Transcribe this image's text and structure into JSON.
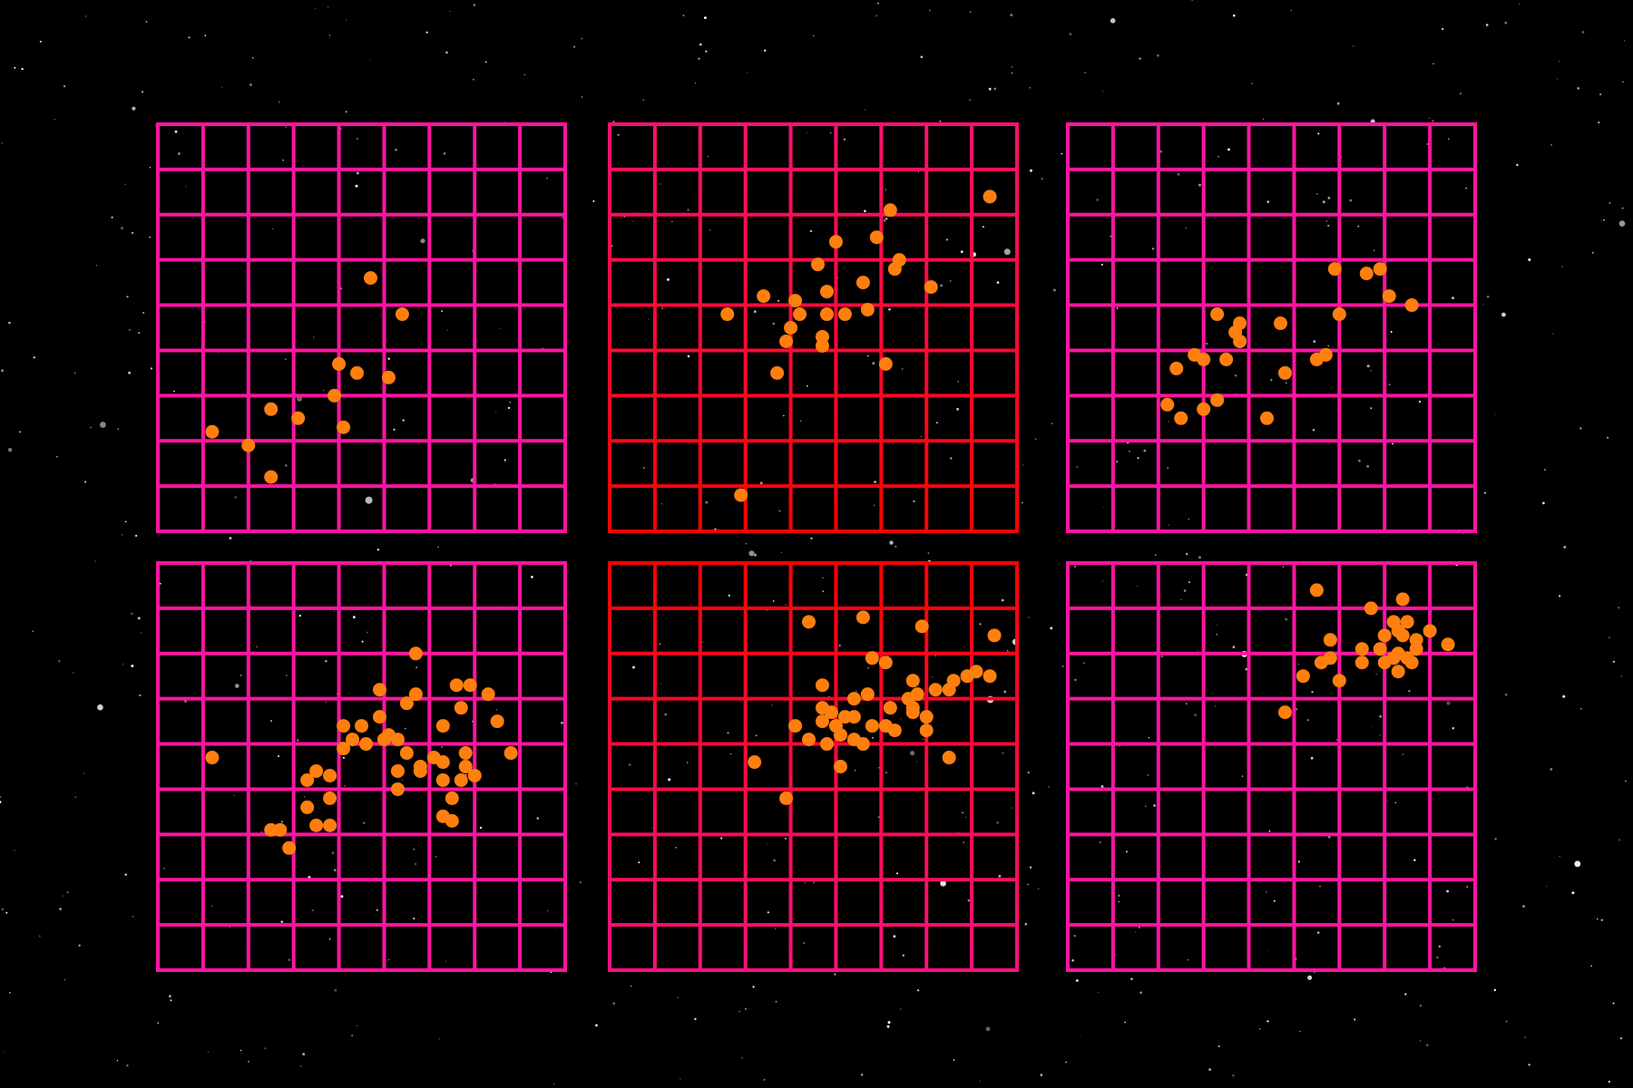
{
  "chart_data": [
    {
      "type": "scatter",
      "color": "#ff7f0e",
      "grid_color": [
        "#ff14a0",
        "#ff14a0"
      ],
      "xlim": [
        0,
        9
      ],
      "ylim": [
        0,
        9
      ],
      "xticks": [
        0,
        1,
        2,
        3,
        4,
        5,
        6,
        7,
        8,
        9
      ],
      "yticks": [
        0,
        1,
        2,
        3,
        4,
        5,
        6,
        7,
        8,
        9
      ],
      "grid": true,
      "x": [
        4.7,
        5.4,
        4.0,
        4.4,
        5.1,
        3.9,
        2.5,
        3.1,
        4.1,
        1.2,
        2.0,
        2.5
      ],
      "y": [
        5.6,
        4.8,
        3.7,
        3.5,
        3.4,
        3.0,
        2.7,
        2.5,
        2.3,
        2.2,
        1.9,
        1.2
      ]
    },
    {
      "type": "scatter",
      "color": "#ff7f0e",
      "grid_color": [
        "#ff1070",
        "#ff0000"
      ],
      "xlim": [
        0,
        9
      ],
      "ylim": [
        0,
        9
      ],
      "xticks": [
        0,
        1,
        2,
        3,
        4,
        5,
        6,
        7,
        8,
        9
      ],
      "yticks": [
        0,
        1,
        2,
        3,
        4,
        5,
        6,
        7,
        8,
        9
      ],
      "grid": true,
      "x": [
        8.4,
        6.2,
        5.0,
        5.9,
        6.4,
        6.3,
        4.6,
        7.1,
        5.6,
        3.4,
        4.1,
        4.8,
        4.2,
        2.6,
        4.8,
        5.2,
        5.7,
        4.0,
        3.9,
        4.7,
        4.7,
        6.1,
        3.7,
        2.9
      ],
      "y": [
        7.4,
        7.1,
        6.4,
        6.5,
        6.0,
        5.8,
        5.9,
        5.4,
        5.5,
        5.2,
        5.1,
        5.3,
        4.8,
        4.8,
        4.8,
        4.8,
        4.9,
        4.5,
        4.2,
        4.3,
        4.1,
        3.7,
        3.5,
        0.8
      ]
    },
    {
      "type": "scatter",
      "color": "#ff7f0e",
      "grid_color": [
        "#ff14a0",
        "#ff14a0"
      ],
      "xlim": [
        0,
        9
      ],
      "ylim": [
        0,
        9
      ],
      "xticks": [
        0,
        1,
        2,
        3,
        4,
        5,
        6,
        7,
        8,
        9
      ],
      "yticks": [
        0,
        1,
        2,
        3,
        4,
        5,
        6,
        7,
        8,
        9
      ],
      "grid": true,
      "x": [
        5.9,
        6.6,
        6.9,
        7.1,
        7.6,
        6.0,
        4.7,
        3.3,
        3.8,
        3.7,
        3.8,
        2.8,
        3.0,
        3.5,
        2.4,
        5.5,
        5.7,
        4.8,
        2.2,
        3.3,
        3.0,
        2.5,
        4.4
      ],
      "y": [
        5.8,
        5.7,
        5.8,
        5.2,
        5.0,
        4.8,
        4.6,
        4.8,
        4.6,
        4.4,
        4.2,
        3.9,
        3.8,
        3.8,
        3.6,
        3.8,
        3.9,
        3.5,
        2.8,
        2.9,
        2.7,
        2.5,
        2.5
      ]
    },
    {
      "type": "scatter",
      "color": "#ff7f0e",
      "grid_color": [
        "#ff14a0",
        "#ff14a0"
      ],
      "xlim": [
        0,
        9
      ],
      "ylim": [
        0,
        9
      ],
      "xticks": [
        0,
        1,
        2,
        3,
        4,
        5,
        6,
        7,
        8,
        9
      ],
      "yticks": [
        0,
        1,
        2,
        3,
        4,
        5,
        6,
        7,
        8,
        9
      ],
      "grid": true,
      "x": [
        5.7,
        6.6,
        6.9,
        7.3,
        4.9,
        5.7,
        5.5,
        6.7,
        7.5,
        4.9,
        4.1,
        4.5,
        6.3,
        4.3,
        5.1,
        5.3,
        4.6,
        4.1,
        5.0,
        1.2,
        5.5,
        6.1,
        6.8,
        7.8,
        5.8,
        6.3,
        6.8,
        5.3,
        5.8,
        7.0,
        3.3,
        3.5,
        3.8,
        6.3,
        6.7,
        5.3,
        3.8,
        6.5,
        3.3,
        6.3,
        6.5,
        3.5,
        3.8,
        2.5,
        2.7,
        2.9
      ],
      "y": [
        7.0,
        6.3,
        6.3,
        6.1,
        6.2,
        6.1,
        5.9,
        5.8,
        5.5,
        5.6,
        5.4,
        5.4,
        5.4,
        5.1,
        5.2,
        5.1,
        5.0,
        4.9,
        5.1,
        4.7,
        4.8,
        4.7,
        4.8,
        4.8,
        4.5,
        4.6,
        4.5,
        4.4,
        4.4,
        4.3,
        4.2,
        4.4,
        4.3,
        4.2,
        4.2,
        4.0,
        3.8,
        3.8,
        3.6,
        3.4,
        3.3,
        3.2,
        3.2,
        3.1,
        3.1,
        2.7
      ]
    },
    {
      "type": "scatter",
      "color": "#ff7f0e",
      "grid_color": [
        "#ff0000",
        "#ff1080"
      ],
      "xlim": [
        0,
        9
      ],
      "ylim": [
        0,
        9
      ],
      "xticks": [
        0,
        1,
        2,
        3,
        4,
        5,
        6,
        7,
        8,
        9
      ],
      "yticks": [
        0,
        1,
        2,
        3,
        4,
        5,
        6,
        7,
        8,
        9
      ],
      "grid": true,
      "x": [
        5.6,
        4.4,
        6.9,
        8.5,
        5.8,
        6.1,
        8.1,
        8.4,
        7.9,
        7.6,
        6.7,
        7.5,
        4.7,
        6.8,
        6.6,
        7.2,
        5.7,
        5.4,
        4.7,
        6.2,
        6.7,
        4.9,
        6.7,
        7.0,
        4.7,
        5.2,
        5.4,
        5.0,
        4.1,
        6.1,
        6.3,
        5.8,
        4.4,
        5.1,
        5.4,
        7.0,
        4.8,
        5.6,
        7.5,
        3.2,
        5.1,
        3.9
      ],
      "y": [
        7.8,
        7.7,
        7.6,
        7.4,
        6.9,
        6.8,
        6.6,
        6.5,
        6.5,
        6.4,
        6.4,
        6.2,
        6.3,
        6.1,
        6.0,
        6.2,
        6.1,
        6.0,
        5.8,
        5.8,
        5.8,
        5.7,
        5.7,
        5.6,
        5.5,
        5.6,
        5.6,
        5.4,
        5.4,
        5.4,
        5.3,
        5.4,
        5.1,
        5.2,
        5.1,
        5.3,
        5.0,
        5.0,
        4.7,
        4.6,
        4.5,
        3.8
      ]
    },
    {
      "type": "scatter",
      "color": "#ff7f0e",
      "grid_color": [
        "#ff14a0",
        "#ff14a0"
      ],
      "xlim": [
        0,
        9
      ],
      "ylim": [
        0,
        9
      ],
      "xticks": [
        0,
        1,
        2,
        3,
        4,
        5,
        6,
        7,
        8,
        9
      ],
      "yticks": [
        0,
        1,
        2,
        3,
        4,
        5,
        6,
        7,
        8,
        9
      ],
      "grid": true,
      "x": [
        5.5,
        7.4,
        6.7,
        7.2,
        7.5,
        7.3,
        8.0,
        7.0,
        7.4,
        7.7,
        8.4,
        5.8,
        6.5,
        6.9,
        7.3,
        7.7,
        7.5,
        7.2,
        7.6,
        6.5,
        7.0,
        5.6,
        5.8,
        5.2,
        6.0,
        7.3,
        4.8
      ],
      "y": [
        8.4,
        8.2,
        8.0,
        7.7,
        7.7,
        7.5,
        7.5,
        7.4,
        7.4,
        7.3,
        7.2,
        7.3,
        7.1,
        7.1,
        7.0,
        7.1,
        6.9,
        6.9,
        6.8,
        6.8,
        6.8,
        6.8,
        6.9,
        6.5,
        6.4,
        6.6,
        5.7
      ]
    }
  ]
}
